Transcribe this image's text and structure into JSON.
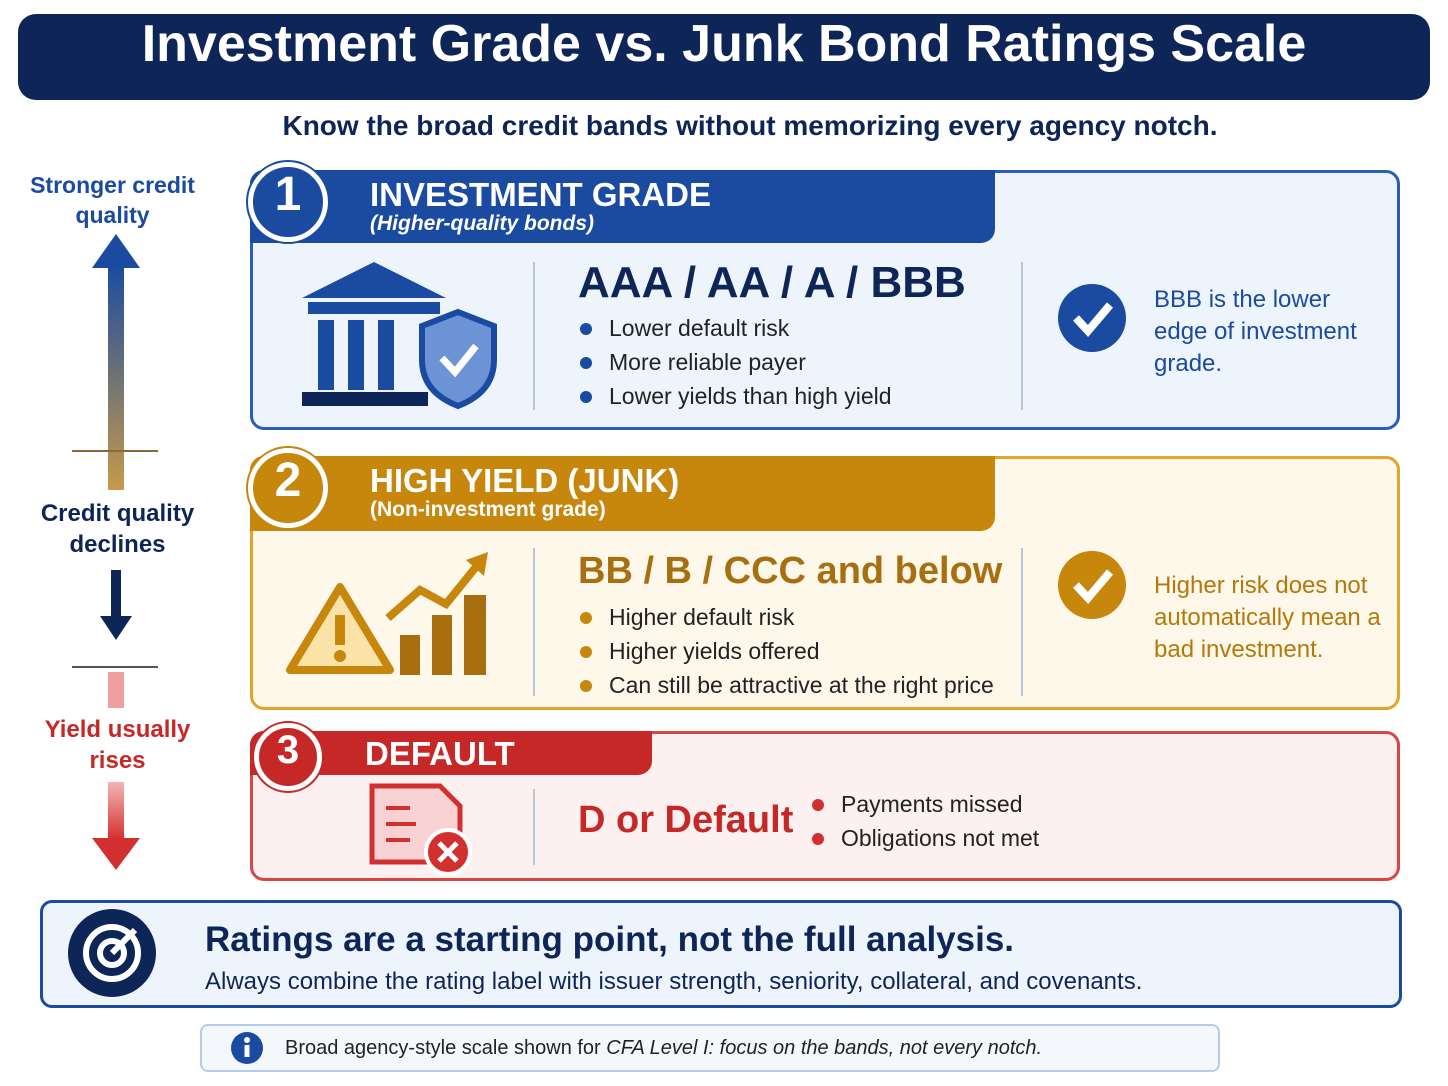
{
  "title": "Investment Grade vs. Junk Bond Ratings Scale",
  "subtitle": "Know the broad credit bands without memorizing every agency notch.",
  "side": {
    "top": "Stronger credit quality",
    "middle": "Credit quality declines",
    "bottom": "Yield usually rises"
  },
  "bands": [
    {
      "number": "1",
      "title": "INVESTMENT GRADE",
      "subtitle": "(Higher-quality bonds)",
      "ratings": "AAA / AA / A / BBB",
      "bullets": [
        "Lower default risk",
        "More reliable payer",
        "Lower yields than high yield"
      ],
      "note": "BBB is the lower edge of investment grade."
    },
    {
      "number": "2",
      "title": "HIGH YIELD (JUNK)",
      "subtitle": "(Non-investment grade)",
      "ratings": "BB / B / CCC and below",
      "bullets": [
        "Higher default risk",
        "Higher yields offered",
        "Can still be attractive at the right price"
      ],
      "note": "Higher risk does not automatically mean a bad investment."
    },
    {
      "number": "3",
      "title": "DEFAULT",
      "ratings": "D or Default",
      "bullets": [
        "Payments missed",
        "Obligations not met"
      ]
    }
  ],
  "summary": {
    "title": "Ratings are a starting point, not the full analysis.",
    "text": "Always combine the rating label with issuer strength, seniority, collateral, and covenants."
  },
  "footnote": {
    "prefix": "Broad agency-style scale shown for",
    "emphasis": "CFA Level I: focus on the bands, not every notch."
  }
}
